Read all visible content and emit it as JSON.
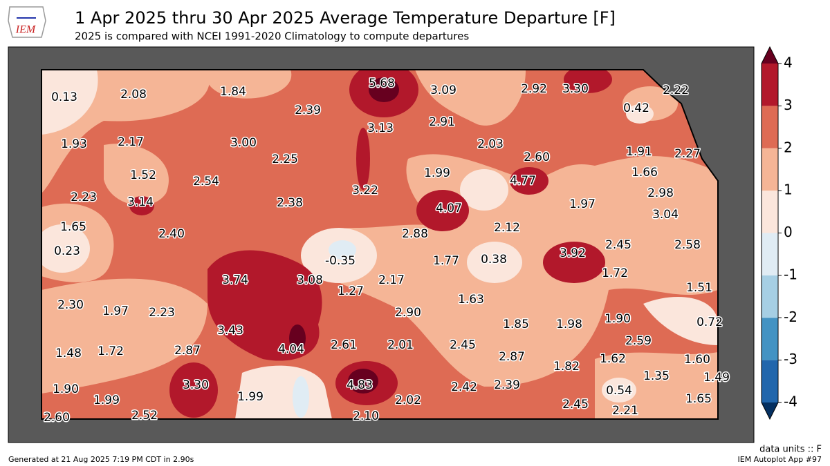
{
  "header": {
    "logo": "IEM",
    "title": "1 Apr 2025 thru 30 Apr 2025 Average Temperature Departure [F]",
    "subtitle": "2025 is compared with NCEI 1991-2020 Climatology to compute departures"
  },
  "stations": {
    "values": [
      0.13,
      2.08,
      1.84,
      2.39,
      5.68,
      3.09,
      2.92,
      3.3,
      2.22,
      0.42,
      1.93,
      2.17,
      3.0,
      2.25,
      3.13,
      2.91,
      2.03,
      2.6,
      1.91,
      2.27,
      1.52,
      2.54,
      1.99,
      3.22,
      4.77,
      1.66,
      2.98,
      2.23,
      3.14,
      2.38,
      4.07,
      1.97,
      3.04,
      1.65,
      2.4,
      2.88,
      2.12,
      2.45,
      2.58,
      0.23,
      -0.35,
      1.77,
      0.38,
      3.92,
      3.74,
      3.08,
      2.17,
      1.72,
      1.51,
      2.3,
      1.97,
      2.23,
      1.27,
      1.63,
      2.9,
      1.9,
      0.72,
      1.85,
      1.98,
      3.43,
      4.04,
      2.61,
      2.01,
      2.45,
      2.59,
      1.48,
      1.72,
      2.87,
      2.87,
      1.82,
      1.62,
      1.6,
      3.3,
      1.99,
      4.83,
      2.02,
      2.42,
      2.39,
      1.35,
      1.49,
      1.9,
      1.99,
      0.54,
      1.65,
      2.6,
      2.52,
      2.1,
      2.45,
      2.21
    ],
    "value_labels": [
      "0.13",
      "2.08",
      "1.84",
      "2.39",
      "5.68",
      "3.09",
      "2.92",
      "3.30",
      "2.22",
      "0.42",
      "1.93",
      "2.17",
      "3.00",
      "2.25",
      "3.13",
      "2.91",
      "2.03",
      "2.60",
      "1.91",
      "2.27",
      "1.52",
      "2.54",
      "1.99",
      "3.22",
      "4.77",
      "1.66",
      "2.98",
      "2.23",
      "3.14",
      "2.38",
      "4.07",
      "1.97",
      "3.04",
      "1.65",
      "2.40",
      "2.88",
      "2.12",
      "2.45",
      "2.58",
      "0.23",
      "-0.35",
      "1.77",
      "0.38",
      "3.92",
      "3.74",
      "3.08",
      "2.17",
      "1.72",
      "1.51",
      "2.30",
      "1.97",
      "2.23",
      "1.27",
      "1.63",
      "2.90",
      "1.90",
      "0.72",
      "1.85",
      "1.98",
      "3.43",
      "4.04",
      "2.61",
      "2.01",
      "2.45",
      "2.59",
      "1.48",
      "1.72",
      "2.87",
      "2.87",
      "1.82",
      "1.62",
      "1.60",
      "3.30",
      "1.99",
      "4.83",
      "2.02",
      "2.42",
      "2.39",
      "1.35",
      "1.49",
      "1.90",
      "1.99",
      "0.54",
      "1.65",
      "2.60",
      "2.52",
      "2.10",
      "2.45",
      "2.21"
    ]
  },
  "colorbar": {
    "lim": [
      -4,
      4
    ],
    "ticks": [
      -4,
      -3,
      -2,
      -1,
      0,
      1,
      2,
      3,
      4
    ],
    "colors": [
      "#2166ac",
      "#4393c3",
      "#a6cfe4",
      "#e0ecf4",
      "#fbe6dc",
      "#f5b596",
      "#de6b54",
      "#b2182b"
    ],
    "under_color": "#053061",
    "over_color": "#67001f"
  },
  "footer": {
    "units": "data units :: F",
    "generated": "Generated at 21 Aug 2025 7:19 PM CDT in 2.90s",
    "app": "IEM Autoplot App #97"
  }
}
